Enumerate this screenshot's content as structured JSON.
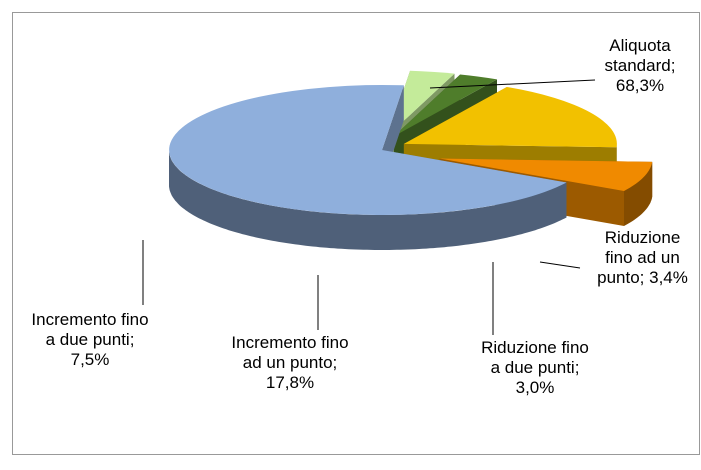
{
  "chart_data": {
    "type": "pie3d",
    "values": [
      68.3,
      3.4,
      3.0,
      17.8,
      7.5
    ],
    "value_labels": [
      "Aliquota standard; 68,3%",
      "Riduzione fino ad un punto; 3,4%",
      "Riduzione fino a due punti; 3,0%",
      "Incremento fino ad un punto; 17,8%",
      "Incremento fino a due punti; 7,5%"
    ],
    "colors": [
      "#8fafdc",
      "#c4eb9a",
      "#4f7d2b",
      "#f2c100",
      "#f08a00"
    ]
  }
}
